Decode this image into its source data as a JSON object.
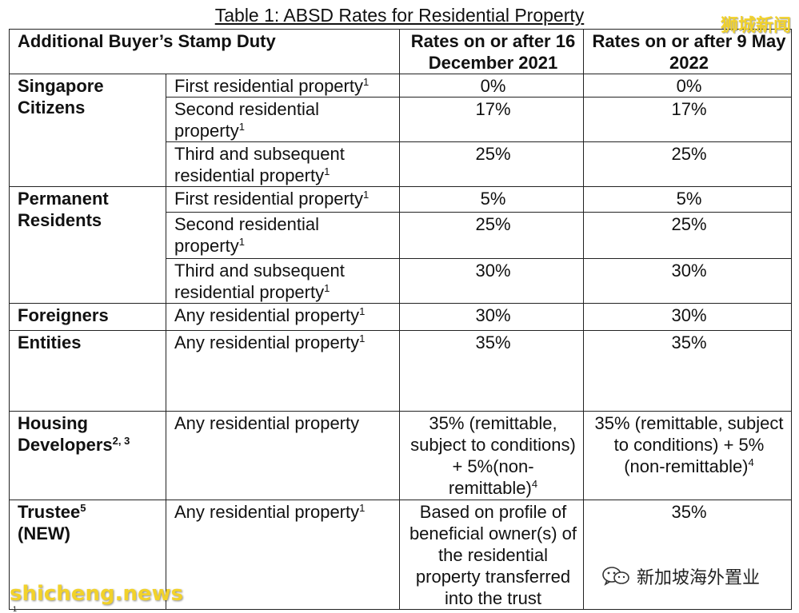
{
  "caption": "Table 1: ABSD Rates for Residential Property",
  "header": {
    "main": "Additional Buyer’s Stamp Duty",
    "col1": "Rates on or after 16 December 2021",
    "col2": "Rates on or after 9 May 2022"
  },
  "rows": {
    "sc": {
      "category": "Singapore Citizens",
      "r1": {
        "property": "First residential property",
        "fn": "1",
        "old": "0%",
        "new": "0%"
      },
      "r2": {
        "property": "Second residential property",
        "fn": "1",
        "old": "17%",
        "new": "17%"
      },
      "r3": {
        "property": "Third and subsequent residential property",
        "fn": "1",
        "old": "25%",
        "new": "25%"
      }
    },
    "pr": {
      "category": "Permanent Residents",
      "r1": {
        "property": "First residential property",
        "fn": "1",
        "old": "5%",
        "new": "5%"
      },
      "r2": {
        "property": "Second residential property",
        "fn": "1",
        "old": "25%",
        "new": "25%"
      },
      "r3": {
        "property": "Third and subsequent residential property",
        "fn": "1",
        "old": "30%",
        "new": "30%"
      }
    },
    "foreigners": {
      "category": "Foreigners",
      "property": "Any residential property",
      "fn": "1",
      "old": "30%",
      "new": "30%"
    },
    "entities": {
      "category": "Entities",
      "property": "Any residential property",
      "fn": "1",
      "old": "35%",
      "new": "35%"
    },
    "developers": {
      "category": "Housing Developers",
      "cat_fn": "2, 3",
      "property": "Any residential property",
      "old": "35% (remittable, subject to conditions) + 5%(non-remittable)",
      "old_fn": "4",
      "new": "35% (remittable, subject to conditions) + 5% (non-remittable)",
      "new_fn": "4"
    },
    "trustee": {
      "category": "Trustee",
      "cat_fn": "5",
      "tag": "(NEW)",
      "property": "Any residential property",
      "fn": "1",
      "old": "Based on profile of beneficial owner(s) of the residential property transferred into the trust",
      "new": "35%"
    }
  },
  "watermarks": {
    "top_right": "狮城新闻",
    "bottom_left": "shicheng.news",
    "brand": "新加坡海外置业",
    "brand_icon": "wechat-icon",
    "brand_color": "#2b2b2b",
    "watermark_color": "#f2d22a"
  },
  "footer_mark": "1"
}
